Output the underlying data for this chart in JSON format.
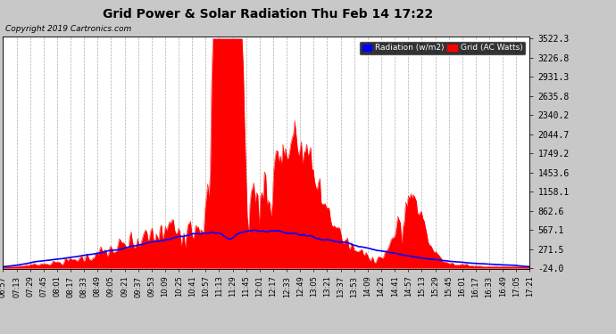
{
  "title": "Grid Power & Solar Radiation Thu Feb 14 17:22",
  "copyright": "Copyright 2019 Cartronics.com",
  "background_color": "#c8c8c8",
  "plot_bg_color": "#ffffff",
  "grid_color": "#aaaaaa",
  "yticks": [
    -24.0,
    271.5,
    567.1,
    862.6,
    1158.1,
    1453.6,
    1749.2,
    2044.7,
    2340.2,
    2635.8,
    2931.3,
    3226.8,
    3522.3
  ],
  "ymin": -24.0,
  "ymax": 3522.3,
  "legend_radiation_label": "Radiation (w/m2)",
  "legend_grid_label": "Grid (AC Watts)",
  "radiation_color": "#0000ff",
  "fill_color": "#ff0000",
  "xtick_labels": [
    "06:57",
    "07:13",
    "07:29",
    "07:45",
    "08:01",
    "08:17",
    "08:33",
    "08:49",
    "09:05",
    "09:21",
    "09:37",
    "09:53",
    "10:09",
    "10:25",
    "10:41",
    "10:57",
    "11:13",
    "11:29",
    "11:45",
    "12:01",
    "12:17",
    "12:33",
    "12:49",
    "13:05",
    "13:21",
    "13:37",
    "13:53",
    "14:09",
    "14:25",
    "14:41",
    "14:57",
    "15:13",
    "15:29",
    "15:45",
    "16:01",
    "16:17",
    "16:33",
    "16:49",
    "17:05",
    "17:21"
  ]
}
